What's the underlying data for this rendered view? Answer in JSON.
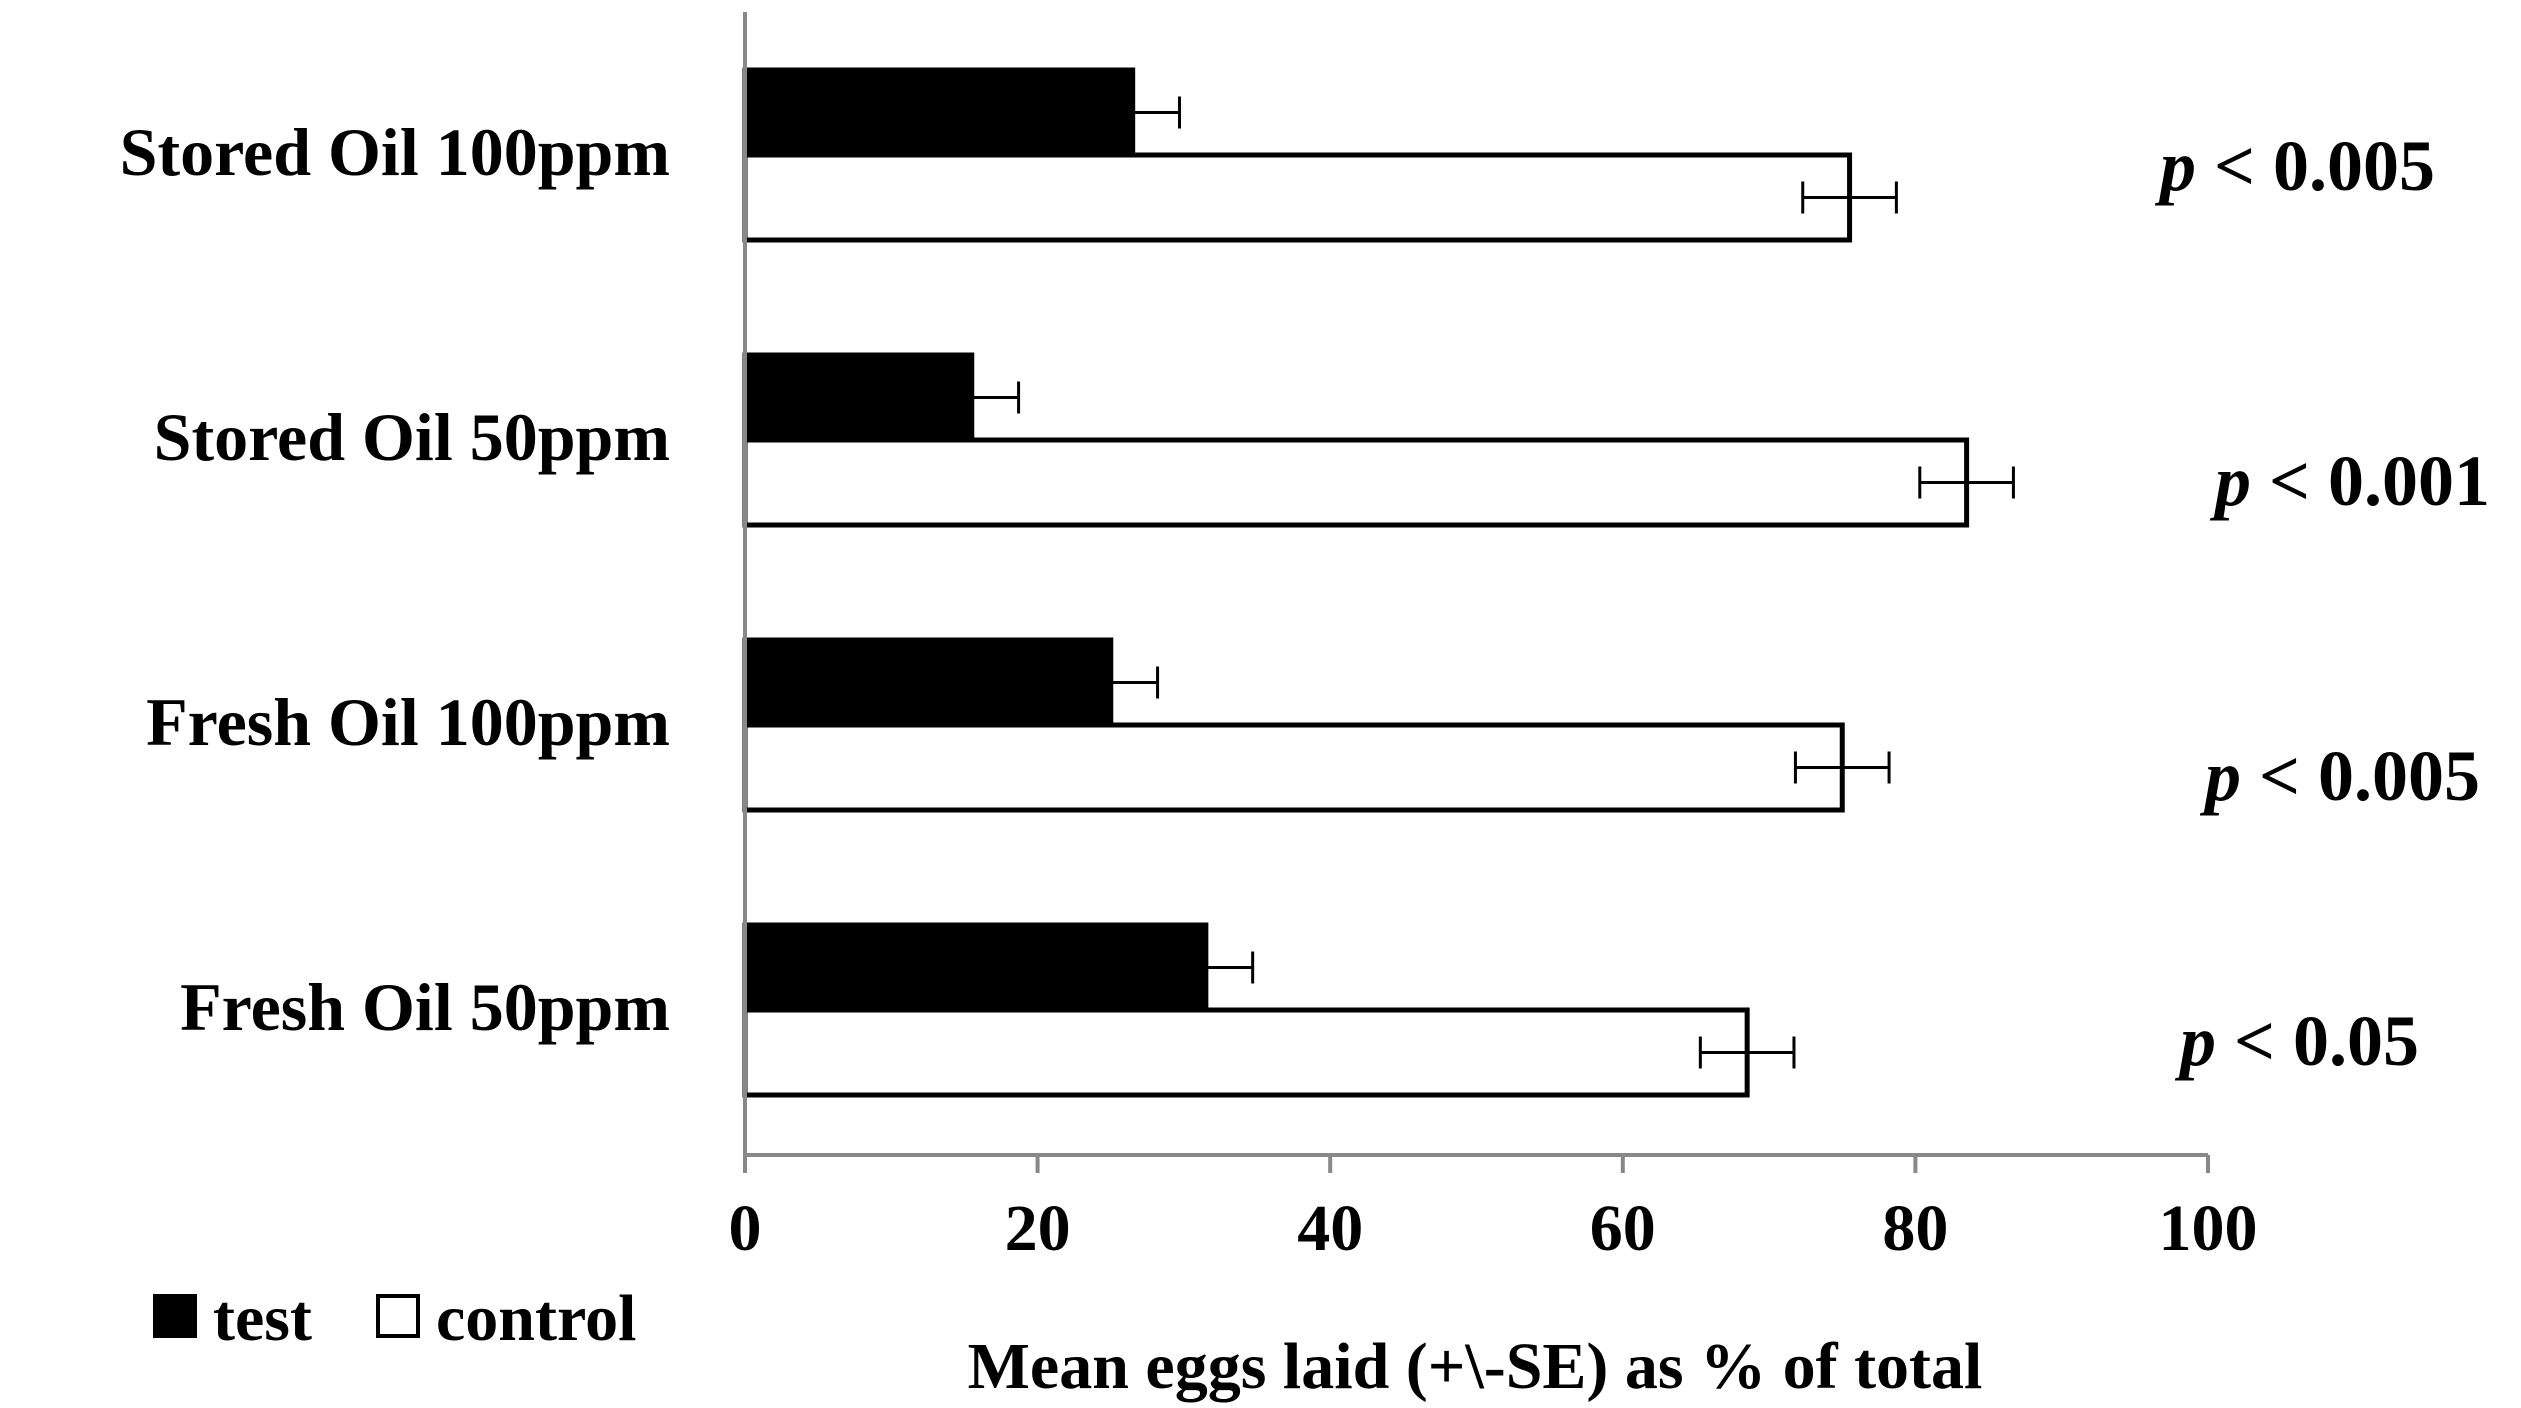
{
  "chart_data": {
    "type": "bar",
    "orientation": "horizontal",
    "categories": [
      "Stored Oil 100ppm",
      "Stored Oil 50ppm",
      "Fresh Oil 100ppm",
      "Fresh Oil 50ppm"
    ],
    "series": [
      {
        "name": "test",
        "fill": "#000000",
        "values": [
          26.5,
          15.5,
          25,
          31.5
        ],
        "errors": [
          3.2,
          3.2,
          3.2,
          3.2
        ]
      },
      {
        "name": "control",
        "fill": "#ffffff",
        "values": [
          75.5,
          83.5,
          75,
          68.5
        ],
        "errors": [
          3.2,
          3.2,
          3.2,
          3.2
        ]
      }
    ],
    "p_values": [
      "p < 0.005",
      "p < 0.001",
      "p < 0.005",
      "p < 0.05"
    ],
    "xlabel": "Mean eggs laid (+\\-SE) as % of total",
    "xlim": [
      0,
      100
    ],
    "xticks": [
      0,
      20,
      40,
      60,
      80,
      100
    ],
    "legend_position": "bottom-left",
    "grid": false
  }
}
